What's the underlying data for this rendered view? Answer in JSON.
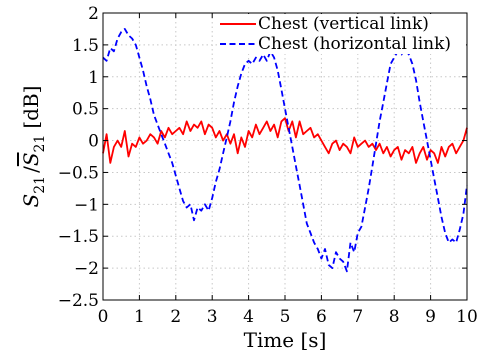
{
  "chart_data": {
    "type": "line",
    "title": "",
    "xlabel": "Time [s]",
    "ylabel_main": "S",
    "ylabel_sub": "21",
    "ylabel_unit": "[dB]",
    "xlim": [
      0,
      10
    ],
    "ylim": [
      -2.5,
      2
    ],
    "xticks": [
      0,
      1,
      2,
      3,
      4,
      5,
      6,
      7,
      8,
      9,
      10
    ],
    "yticks": [
      -2.5,
      -2,
      -1.5,
      -1,
      -0.5,
      0,
      0.5,
      1,
      1.5,
      2
    ],
    "xtick_labels": [
      "0",
      "1",
      "2",
      "3",
      "4",
      "5",
      "6",
      "7",
      "8",
      "9",
      "10"
    ],
    "ytick_labels": [
      "−2.5",
      "−2",
      "−1.5",
      "−1",
      "−0.5",
      "0",
      "0.5",
      "1",
      "1.5",
      "2"
    ],
    "grid": true,
    "legend_position": "top-right",
    "series": [
      {
        "name": "Chest (vertical link)",
        "color": "#ff0000",
        "dash": "solid",
        "x": [
          0,
          0.1,
          0.2,
          0.3,
          0.4,
          0.5,
          0.6,
          0.7,
          0.8,
          0.9,
          1.0,
          1.1,
          1.2,
          1.3,
          1.4,
          1.5,
          1.6,
          1.7,
          1.8,
          1.9,
          2.0,
          2.1,
          2.2,
          2.3,
          2.4,
          2.5,
          2.6,
          2.7,
          2.8,
          2.9,
          3.0,
          3.1,
          3.2,
          3.3,
          3.4,
          3.5,
          3.6,
          3.7,
          3.8,
          3.9,
          4.0,
          4.1,
          4.2,
          4.3,
          4.4,
          4.5,
          4.6,
          4.7,
          4.8,
          4.9,
          5.0,
          5.1,
          5.2,
          5.3,
          5.4,
          5.5,
          5.6,
          5.7,
          5.8,
          5.9,
          6.0,
          6.1,
          6.2,
          6.3,
          6.4,
          6.5,
          6.6,
          6.7,
          6.8,
          6.9,
          7.0,
          7.1,
          7.2,
          7.3,
          7.4,
          7.5,
          7.6,
          7.7,
          7.8,
          7.9,
          8.0,
          8.1,
          8.2,
          8.3,
          8.4,
          8.5,
          8.6,
          8.7,
          8.8,
          8.9,
          9.0,
          9.1,
          9.2,
          9.3,
          9.4,
          9.5,
          9.6,
          9.7,
          9.8,
          9.9,
          10.0
        ],
        "y": [
          -0.2,
          0.1,
          -0.35,
          -0.1,
          0.0,
          -0.1,
          0.15,
          -0.25,
          -0.05,
          -0.1,
          0.05,
          -0.05,
          0.0,
          0.1,
          0.05,
          -0.05,
          0.15,
          0.05,
          0.2,
          0.1,
          0.15,
          0.2,
          0.1,
          0.3,
          0.15,
          0.25,
          0.2,
          0.3,
          0.1,
          0.25,
          0.2,
          0.05,
          0.15,
          0.0,
          0.1,
          -0.05,
          0.1,
          -0.2,
          0.05,
          -0.1,
          0.15,
          0.05,
          0.25,
          0.1,
          0.2,
          0.3,
          0.15,
          0.25,
          0.05,
          0.3,
          0.35,
          0.15,
          0.3,
          0.05,
          0.3,
          0.1,
          0.15,
          0.2,
          0.05,
          0.1,
          0.0,
          -0.1,
          -0.2,
          -0.05,
          0.0,
          -0.15,
          -0.05,
          -0.1,
          -0.2,
          0.05,
          -0.1,
          -0.05,
          0.0,
          -0.1,
          -0.05,
          -0.15,
          -0.05,
          -0.2,
          -0.1,
          -0.25,
          -0.15,
          -0.1,
          -0.3,
          -0.15,
          -0.2,
          -0.1,
          -0.35,
          -0.2,
          -0.1,
          -0.3,
          -0.15,
          -0.2,
          -0.35,
          -0.1,
          -0.25,
          -0.1,
          -0.05,
          -0.2,
          -0.1,
          0.0,
          0.2
        ]
      },
      {
        "name": "Chest (horizontal link)",
        "color": "#0000ff",
        "dash": "dashed",
        "x": [
          0,
          0.1,
          0.2,
          0.3,
          0.4,
          0.5,
          0.6,
          0.7,
          0.8,
          0.9,
          1.0,
          1.1,
          1.2,
          1.3,
          1.4,
          1.5,
          1.6,
          1.7,
          1.8,
          1.9,
          2.0,
          2.1,
          2.2,
          2.3,
          2.4,
          2.5,
          2.6,
          2.7,
          2.8,
          2.9,
          3.0,
          3.1,
          3.2,
          3.3,
          3.4,
          3.5,
          3.6,
          3.7,
          3.8,
          3.9,
          4.0,
          4.1,
          4.2,
          4.3,
          4.4,
          4.5,
          4.6,
          4.7,
          4.8,
          4.9,
          5.0,
          5.1,
          5.2,
          5.3,
          5.4,
          5.5,
          5.6,
          5.7,
          5.8,
          5.9,
          6.0,
          6.1,
          6.2,
          6.3,
          6.4,
          6.5,
          6.6,
          6.7,
          6.8,
          6.9,
          7.0,
          7.1,
          7.2,
          7.3,
          7.4,
          7.5,
          7.6,
          7.7,
          7.8,
          7.9,
          8.0,
          8.1,
          8.2,
          8.3,
          8.4,
          8.5,
          8.6,
          8.7,
          8.8,
          8.9,
          9.0,
          9.1,
          9.2,
          9.3,
          9.4,
          9.5,
          9.6,
          9.7,
          9.8,
          9.9,
          10.0
        ],
        "y": [
          1.3,
          1.25,
          1.45,
          1.4,
          1.6,
          1.7,
          1.75,
          1.65,
          1.6,
          1.5,
          1.3,
          1.1,
          0.85,
          0.65,
          0.4,
          0.25,
          0.1,
          -0.05,
          -0.2,
          -0.35,
          -0.55,
          -0.75,
          -0.95,
          -1.05,
          -1.0,
          -1.25,
          -1.05,
          -1.1,
          -1.0,
          -1.1,
          -0.9,
          -0.65,
          -0.45,
          -0.2,
          0.05,
          0.3,
          0.6,
          0.85,
          1.05,
          1.2,
          1.25,
          1.2,
          1.3,
          1.25,
          1.35,
          1.25,
          1.4,
          1.3,
          1.1,
          0.8,
          0.5,
          0.2,
          -0.1,
          -0.4,
          -0.7,
          -1.0,
          -1.3,
          -1.45,
          -1.6,
          -1.7,
          -1.85,
          -1.7,
          -1.95,
          -2.0,
          -1.75,
          -1.85,
          -1.9,
          -2.05,
          -1.6,
          -1.75,
          -1.45,
          -1.35,
          -1.05,
          -0.75,
          -0.4,
          -0.05,
          0.3,
          0.6,
          0.9,
          1.2,
          1.3,
          1.4,
          1.35,
          1.45,
          1.35,
          1.2,
          0.95,
          0.6,
          0.3,
          0.0,
          -0.3,
          -0.6,
          -0.9,
          -1.2,
          -1.45,
          -1.6,
          -1.55,
          -1.6,
          -1.4,
          -1.15,
          -0.7
        ]
      }
    ]
  }
}
